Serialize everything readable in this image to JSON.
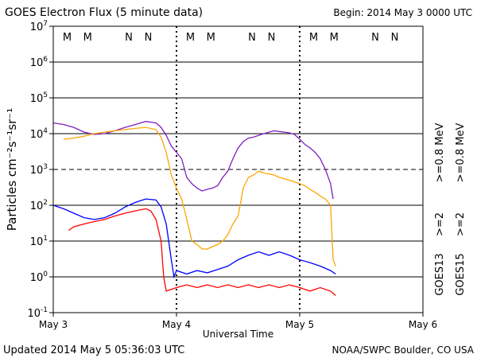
{
  "header": {
    "title": "GOES Electron Flux (5 minute data)",
    "begin": "Begin: 2014 May 3 0000 UTC"
  },
  "footer": {
    "updated": "Updated 2014 May  5 05:36:03 UTC",
    "credit": "NOAA/SWPC Boulder, CO USA"
  },
  "chart_data": {
    "type": "line",
    "title": "GOES Electron Flux (5 minute data)",
    "xlabel": "Universal Time",
    "ylabel": "Particles cm⁻²s⁻¹sr⁻¹",
    "yscale": "log",
    "ylim": [
      0.1,
      10000000
    ],
    "y_ticks": [
      {
        "value": 0.1,
        "base": "10",
        "exp": "-1"
      },
      {
        "value": 1,
        "base": "10",
        "exp": "0"
      },
      {
        "value": 10,
        "base": "10",
        "exp": "1"
      },
      {
        "value": 100,
        "base": "10",
        "exp": "2"
      },
      {
        "value": 1000,
        "base": "10",
        "exp": "3"
      },
      {
        "value": 10000,
        "base": "10",
        "exp": "4"
      },
      {
        "value": 100000,
        "base": "10",
        "exp": "5"
      },
      {
        "value": 1000000,
        "base": "10",
        "exp": "6"
      },
      {
        "value": 10000000,
        "base": "10",
        "exp": "7"
      }
    ],
    "x_range_hours": [
      0,
      72
    ],
    "x_ticks": [
      {
        "hour": 0,
        "label": "May 3"
      },
      {
        "hour": 24,
        "label": "May 4"
      },
      {
        "hour": 48,
        "label": "May 5"
      },
      {
        "hour": 72,
        "label": "May 6"
      }
    ],
    "alert_threshold": 1000,
    "grid": true,
    "markers": [
      {
        "hour": 2.7,
        "label": "M",
        "color": "#ff0000"
      },
      {
        "hour": 6.7,
        "label": "M",
        "color": "#0000ff"
      },
      {
        "hour": 14.7,
        "label": "N",
        "color": "#ff0000"
      },
      {
        "hour": 18.5,
        "label": "N",
        "color": "#0000ff"
      },
      {
        "hour": 26.7,
        "label": "M",
        "color": "#ff0000"
      },
      {
        "hour": 30.7,
        "label": "M",
        "color": "#0000ff"
      },
      {
        "hour": 38.7,
        "label": "N",
        "color": "#ff0000"
      },
      {
        "hour": 42.5,
        "label": "N",
        "color": "#0000ff"
      },
      {
        "hour": 50.7,
        "label": "M",
        "color": "#ff0000"
      },
      {
        "hour": 54.7,
        "label": "M",
        "color": "#0000ff"
      },
      {
        "hour": 62.7,
        "label": "N",
        "color": "#ff0000"
      },
      {
        "hour": 66.5,
        "label": "N",
        "color": "#0000ff"
      }
    ],
    "legend": [
      {
        "label": ">=0.8 MeV",
        "color": "#7f1fbf"
      },
      {
        "label": ">=0.8 MeV",
        "color": "#ffa500"
      },
      {
        "label": ">=2",
        "color": "#0000ff"
      },
      {
        "label": ">=2",
        "color": "#ff0000"
      },
      {
        "label": "GOES15",
        "color": "#000000"
      },
      {
        "label": "GOES13",
        "color": "#000000"
      }
    ],
    "series": [
      {
        "name": "GOES15 >=0.8 MeV",
        "color": "#7f1fbf",
        "x": [
          0,
          2,
          4,
          6,
          8,
          10,
          12,
          14,
          16,
          18,
          20,
          21,
          22,
          23,
          24,
          25,
          26,
          27,
          28,
          29,
          30,
          31,
          32,
          33,
          34,
          35,
          36,
          37,
          38,
          39,
          40,
          41,
          42,
          43,
          44,
          45,
          46,
          47,
          48,
          49,
          50,
          51,
          52,
          53,
          54,
          54.5
        ],
        "y": [
          20000,
          18000,
          15000,
          11000,
          9500,
          10000,
          12000,
          15000,
          18000,
          22000,
          20000,
          15000,
          9000,
          4500,
          3000,
          2000,
          600,
          400,
          300,
          250,
          280,
          300,
          350,
          600,
          900,
          2000,
          4000,
          6000,
          7500,
          8000,
          9000,
          10000,
          11000,
          12000,
          11500,
          11000,
          10500,
          9500,
          7000,
          5000,
          4000,
          3000,
          2000,
          1000,
          400,
          150
        ]
      },
      {
        "name": "GOES13 >=0.8 MeV",
        "color": "#ffa500",
        "x": [
          2,
          4,
          6,
          8,
          10,
          12,
          14,
          16,
          18,
          20,
          21,
          22,
          23,
          24,
          25,
          26,
          27,
          28,
          29,
          30,
          31,
          32,
          33,
          34,
          35,
          36,
          37,
          38,
          39,
          40,
          41,
          42,
          43,
          44,
          45,
          46,
          47,
          48,
          49,
          50,
          51,
          52,
          53,
          54,
          54.5,
          55
        ],
        "y": [
          7000,
          7500,
          8500,
          10000,
          11000,
          12000,
          13000,
          14000,
          15000,
          13000,
          8000,
          3000,
          700,
          300,
          150,
          40,
          10,
          8,
          6,
          6,
          7,
          8,
          10,
          15,
          30,
          50,
          300,
          600,
          700,
          900,
          800,
          750,
          700,
          600,
          550,
          500,
          450,
          400,
          350,
          280,
          230,
          180,
          150,
          100,
          3,
          2
        ]
      },
      {
        "name": "GOES15 >=2",
        "color": "#0000ff",
        "x": [
          0,
          2,
          4,
          6,
          8,
          10,
          12,
          14,
          16,
          18,
          20,
          21,
          22,
          23,
          23.5,
          24,
          26,
          28,
          30,
          32,
          34,
          36,
          38,
          40,
          42,
          44,
          46,
          48,
          50,
          52,
          54,
          55
        ],
        "y": [
          100,
          80,
          60,
          45,
          40,
          45,
          60,
          90,
          120,
          150,
          140,
          90,
          30,
          3,
          1,
          1.5,
          1.2,
          1.5,
          1.3,
          1.6,
          2,
          3,
          4,
          5,
          4,
          5,
          4,
          3,
          2.5,
          2,
          1.5,
          1.2
        ]
      },
      {
        "name": "GOES13 >=2",
        "color": "#ff0000",
        "x": [
          3,
          4,
          6,
          8,
          10,
          12,
          14,
          16,
          18,
          19,
          20,
          21,
          21.5,
          22,
          24,
          26,
          28,
          30,
          32,
          34,
          36,
          38,
          40,
          42,
          44,
          46,
          48,
          50,
          52,
          54,
          55
        ],
        "y": [
          20,
          25,
          30,
          35,
          40,
          50,
          60,
          70,
          80,
          70,
          40,
          10,
          1,
          0.4,
          0.5,
          0.6,
          0.5,
          0.6,
          0.5,
          0.6,
          0.5,
          0.6,
          0.5,
          0.6,
          0.5,
          0.6,
          0.5,
          0.4,
          0.5,
          0.4,
          0.3
        ]
      }
    ]
  }
}
